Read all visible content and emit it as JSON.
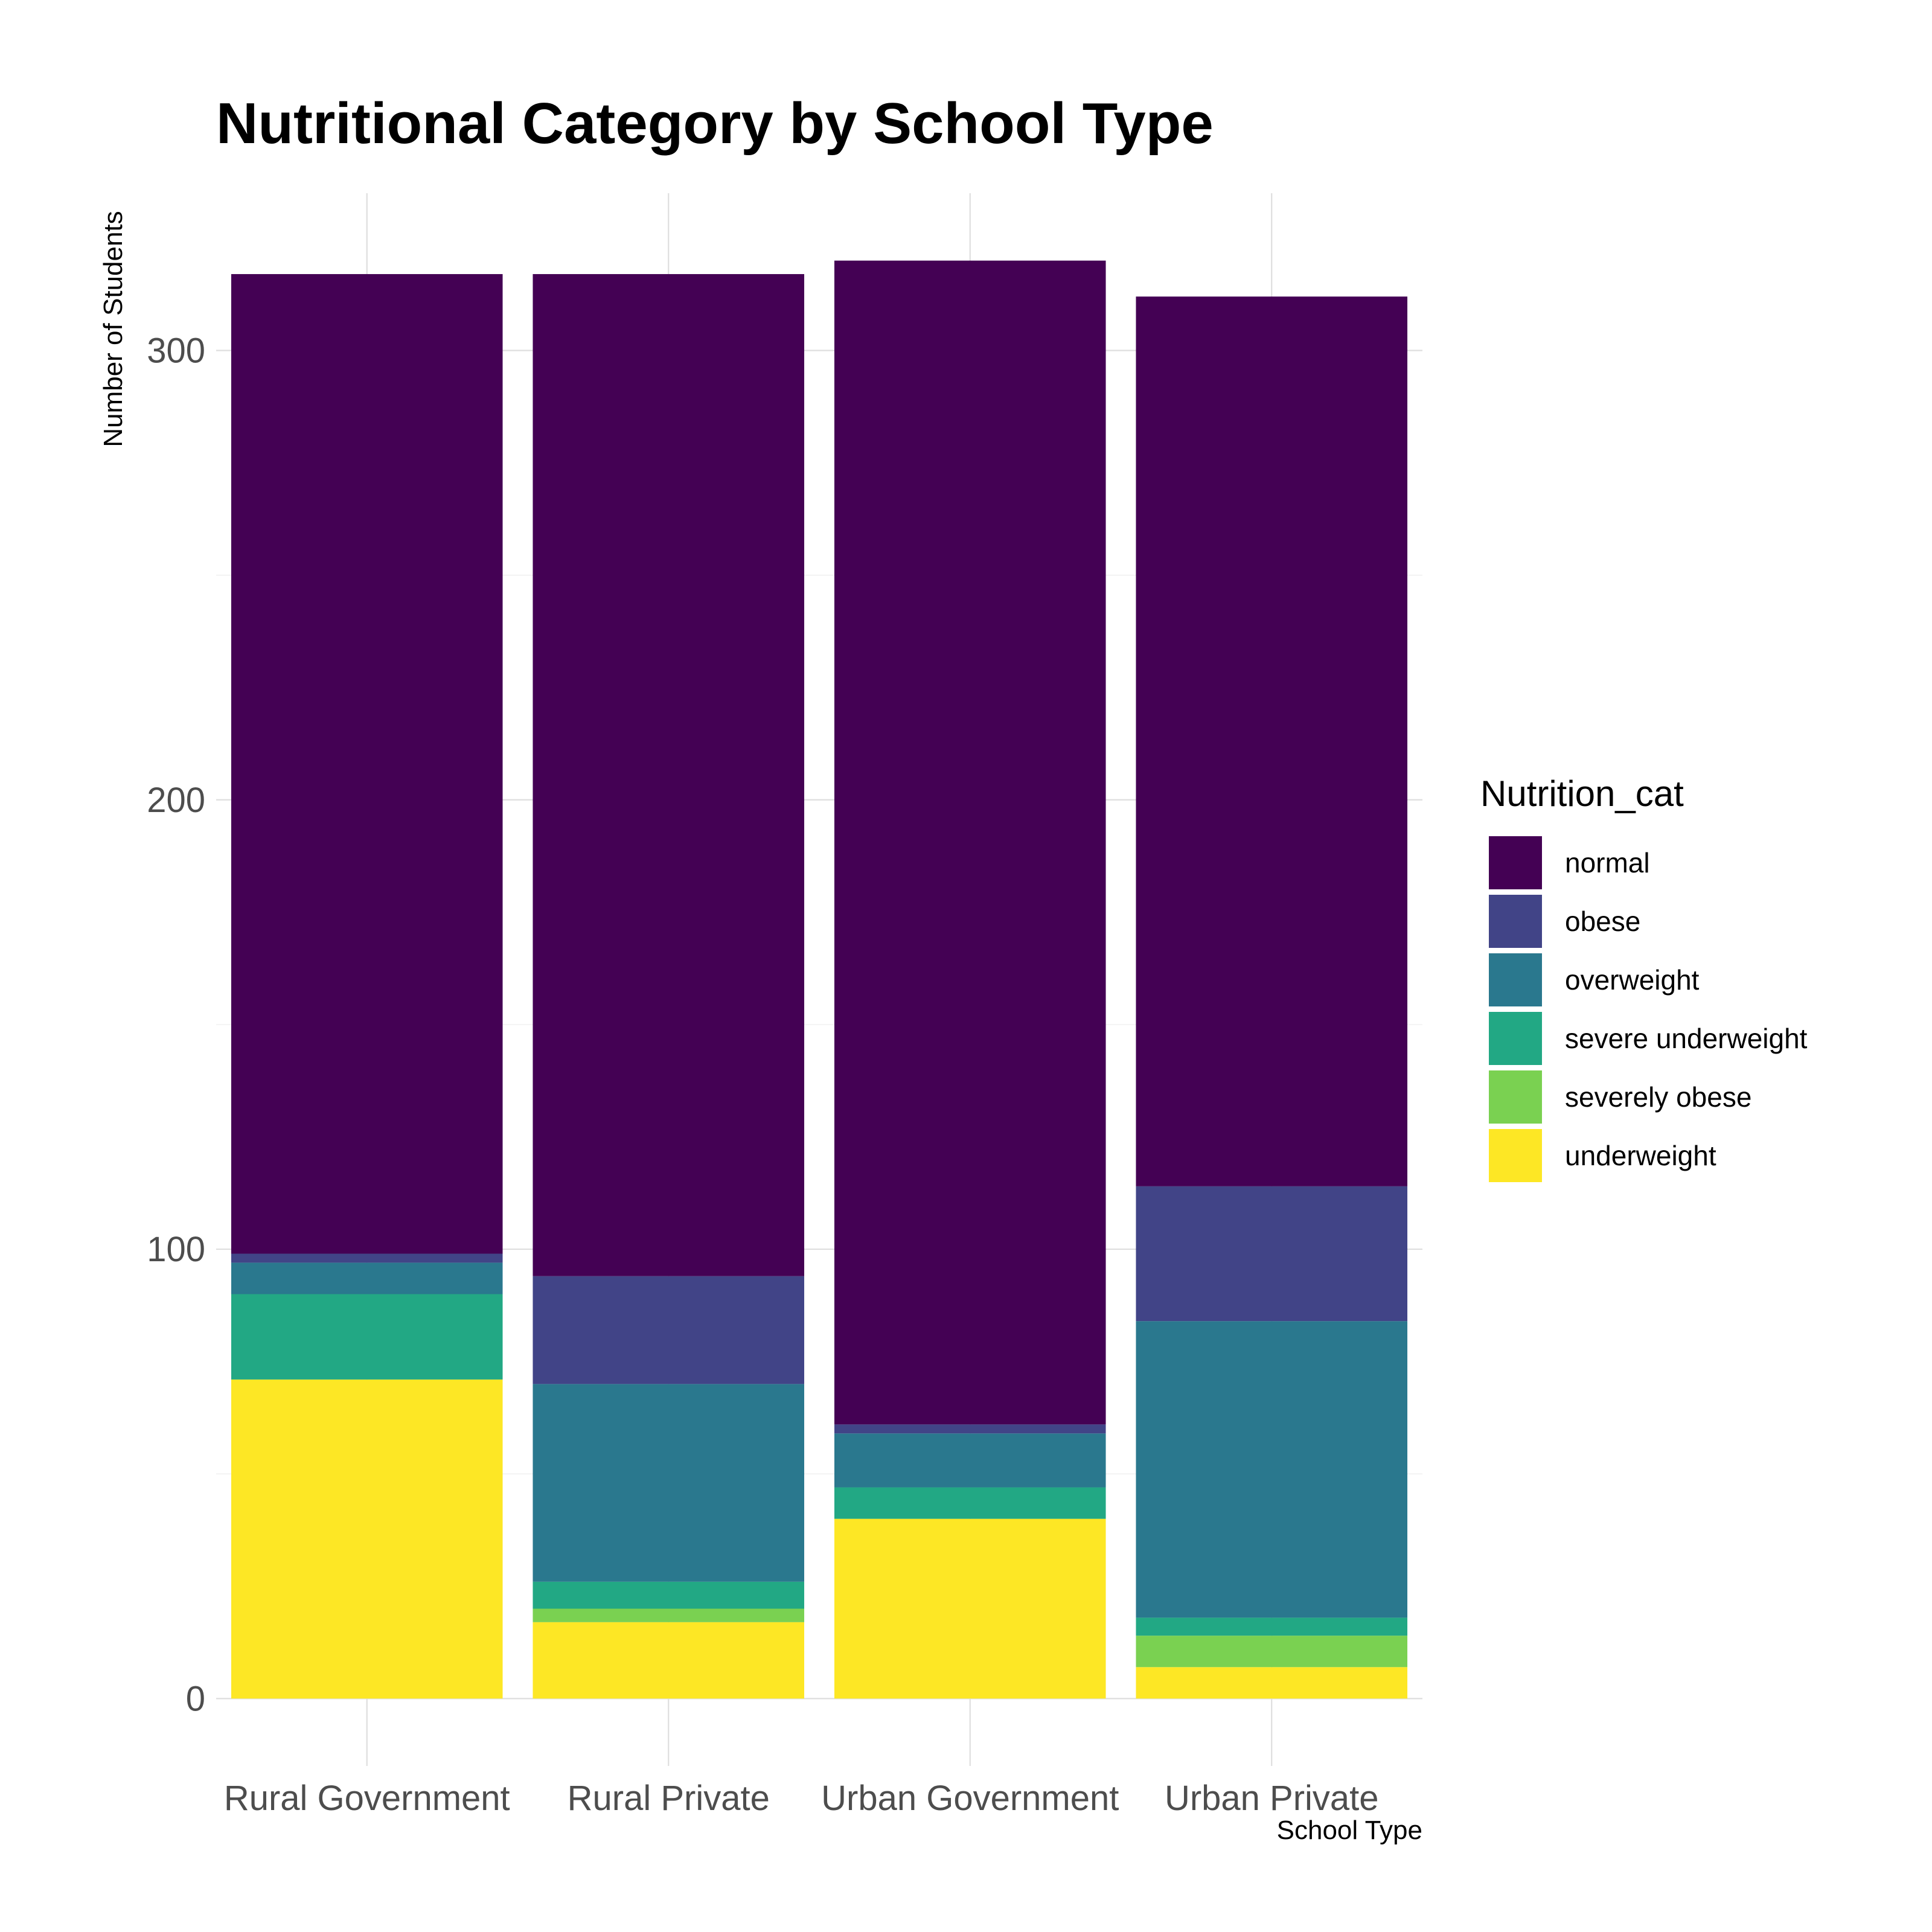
{
  "chart_data": {
    "type": "bar",
    "stacked": true,
    "title": "Nutritional Category by School Type",
    "xlabel": "School Type",
    "ylabel": "Number of Students",
    "categories": [
      "Rural Government",
      "Rural Private",
      "Urban Government",
      "Urban Private"
    ],
    "y_ticks": [
      0,
      100,
      200,
      300
    ],
    "ylim": [
      -15,
      335
    ],
    "grid": true,
    "legend": {
      "title": "Nutrition_cat",
      "placement": "right"
    },
    "stack_order_bottom_to_top": [
      "underweight",
      "severely obese",
      "severe underweight",
      "overweight",
      "obese",
      "normal"
    ],
    "series": [
      {
        "name": "normal",
        "color": "#440154",
        "values": [
          218,
          223,
          259,
          198
        ]
      },
      {
        "name": "obese",
        "color": "#414487",
        "values": [
          2,
          24,
          2,
          30
        ]
      },
      {
        "name": "overweight",
        "color": "#2A788E",
        "values": [
          7,
          44,
          12,
          66
        ]
      },
      {
        "name": "severe underweight",
        "color": "#22A884",
        "values": [
          19,
          6,
          7,
          4
        ]
      },
      {
        "name": "severely obese",
        "color": "#7AD151",
        "values": [
          0,
          3,
          0,
          7
        ]
      },
      {
        "name": "underweight",
        "color": "#FDE725",
        "values": [
          71,
          17,
          40,
          7
        ]
      }
    ]
  }
}
